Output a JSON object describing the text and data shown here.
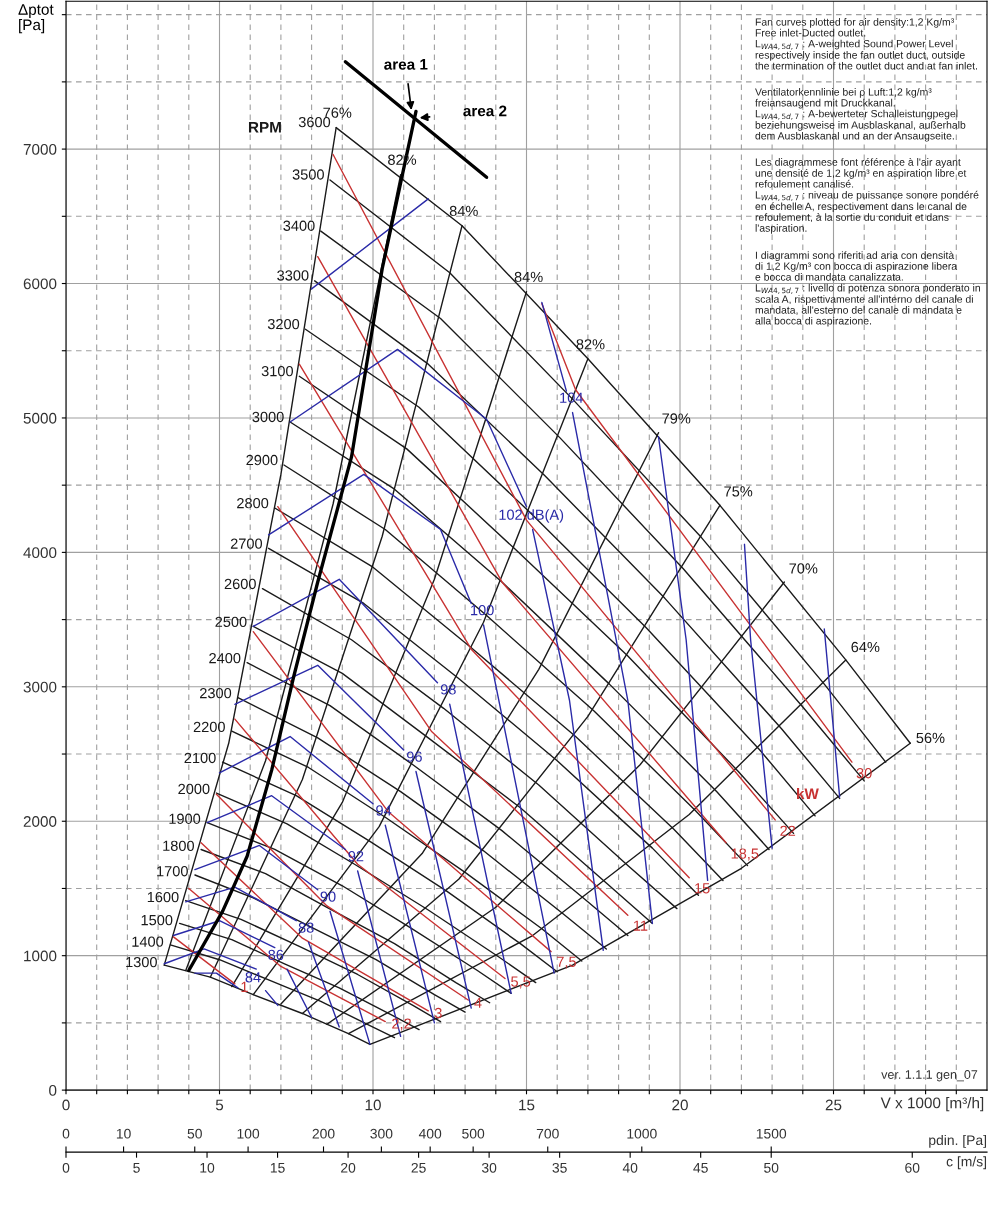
{
  "chart_data": [
    {
      "type": "line",
      "ylabel": "Δptot\n[Pa]",
      "xlabel": "V x 1000 [m³/h]",
      "xlim": [
        0,
        30
      ],
      "ylim": [
        0,
        8100
      ],
      "xticks": [
        0,
        {
          "value": 1,
          "label": null
        },
        {
          "value": 2,
          "label": null
        },
        {
          "value": 3,
          "label": null
        },
        {
          "value": 4,
          "label": null
        },
        5,
        {
          "value": 6,
          "label": null
        },
        {
          "value": 7,
          "label": null
        },
        {
          "value": 8,
          "label": null
        },
        {
          "value": 9,
          "label": null
        },
        10,
        {
          "value": 11,
          "label": null
        },
        {
          "value": 12,
          "label": null
        },
        {
          "value": 13,
          "label": null
        },
        {
          "value": 14,
          "label": null
        },
        15,
        {
          "value": 16,
          "label": null
        },
        {
          "value": 17,
          "label": null
        },
        {
          "value": 18,
          "label": null
        },
        {
          "value": 19,
          "label": null
        },
        20,
        {
          "value": 21,
          "label": null
        },
        {
          "value": 22,
          "label": null
        },
        {
          "value": 23,
          "label": null
        },
        {
          "value": 24,
          "label": null
        },
        25,
        {
          "value": 26,
          "label": null
        },
        {
          "value": 27,
          "label": null
        },
        {
          "value": 28,
          "label": null
        },
        {
          "value": 29,
          "label": null
        }
      ],
      "yticks": [
        0,
        {
          "value": 500,
          "label": null
        },
        1000,
        {
          "value": 1500,
          "label": null
        },
        2000,
        {
          "value": 2500,
          "label": null
        },
        3000,
        {
          "value": 3500,
          "label": null
        },
        4000,
        {
          "value": 4500,
          "label": null
        },
        5000,
        {
          "value": 5500,
          "label": null
        },
        6000,
        {
          "value": 6500,
          "label": null
        },
        7000,
        {
          "value": 7500,
          "label": null
        },
        {
          "value": 8000,
          "label": null
        }
      ],
      "x2label": "c [m/s]",
      "x2lim": [
        0,
        65.3
      ],
      "x2ticks": [
        0,
        5,
        10,
        15,
        20,
        25,
        30,
        35,
        40,
        45,
        50,
        60
      ],
      "grid": true,
      "series": [
        {
          "name": "1300",
          "color": "#1a1a1a",
          "x": [
            3.2,
            4.7,
            6.1,
            7.7,
            9.2,
            9.9
          ],
          "values": [
            930,
            840,
            710,
            570,
            420,
            340
          ]
        },
        {
          "name": "1400",
          "color": "#1a1a1a",
          "x": [
            3.4,
            5.0,
            6.6,
            8.3,
            9.9,
            10.7
          ],
          "values": [
            1080,
            970,
            820,
            660,
            480,
            390
          ]
        },
        {
          "name": "1500",
          "color": "#1a1a1a",
          "x": [
            3.7,
            5.4,
            7.1,
            8.9,
            10.6,
            11.5
          ],
          "values": [
            1240,
            1120,
            940,
            760,
            560,
            450
          ]
        },
        {
          "name": "1600",
          "color": "#1a1a1a",
          "x": [
            3.9,
            5.7,
            7.6,
            9.5,
            11.3,
            12.2
          ],
          "values": [
            1410,
            1270,
            1070,
            860,
            630,
            510
          ]
        },
        {
          "name": "1700",
          "color": "#1a1a1a",
          "x": [
            4.2,
            6.1,
            8.0,
            10.1,
            12.0,
            13.0
          ],
          "values": [
            1600,
            1430,
            1210,
            970,
            710,
            580
          ]
        },
        {
          "name": "1800",
          "color": "#1a1a1a",
          "x": [
            4.4,
            6.5,
            8.5,
            10.7,
            12.7,
            13.8
          ],
          "values": [
            1790,
            1610,
            1360,
            1090,
            800,
            650
          ]
        },
        {
          "name": "1900",
          "color": "#1a1a1a",
          "x": [
            4.6,
            6.8,
            9.0,
            11.2,
            13.4,
            14.5
          ],
          "values": [
            1990,
            1790,
            1520,
            1210,
            890,
            720
          ]
        },
        {
          "name": "2000",
          "color": "#1a1a1a",
          "x": [
            4.9,
            7.2,
            9.4,
            11.8,
            14.1,
            15.3
          ],
          "values": [
            2210,
            1980,
            1680,
            1340,
            990,
            800
          ]
        },
        {
          "name": "2100",
          "color": "#1a1a1a",
          "x": [
            5.1,
            7.5,
            9.9,
            12.4,
            14.8,
            16.0
          ],
          "values": [
            2440,
            2190,
            1850,
            1480,
            1090,
            880
          ]
        },
        {
          "name": "2200",
          "color": "#1a1a1a",
          "x": [
            5.4,
            7.9,
            10.4,
            13.0,
            15.5,
            16.8
          ],
          "values": [
            2670,
            2400,
            2030,
            1620,
            1200,
            960
          ]
        },
        {
          "name": "2300",
          "color": "#1a1a1a",
          "x": [
            5.6,
            8.2,
            10.9,
            13.6,
            16.2,
            17.6
          ],
          "values": [
            2920,
            2620,
            2220,
            1780,
            1310,
            1050
          ]
        },
        {
          "name": "2400",
          "color": "#1a1a1a",
          "x": [
            5.9,
            8.6,
            11.3,
            14.2,
            16.9,
            18.3
          ],
          "values": [
            3180,
            2860,
            2420,
            1930,
            1420,
            1150
          ]
        },
        {
          "name": "2500",
          "color": "#1a1a1a",
          "x": [
            6.1,
            9.0,
            11.8,
            14.8,
            17.6,
            19.1
          ],
          "values": [
            3450,
            3100,
            2620,
            2100,
            1540,
            1240
          ]
        },
        {
          "name": "2600",
          "color": "#1a1a1a",
          "x": [
            6.4,
            9.3,
            12.3,
            15.4,
            18.3,
            19.9
          ],
          "values": [
            3730,
            3350,
            2840,
            2270,
            1670,
            1350
          ]
        },
        {
          "name": "2700",
          "color": "#1a1a1a",
          "x": [
            6.6,
            9.7,
            12.8,
            16.0,
            19.1,
            20.6
          ],
          "values": [
            4030,
            3620,
            3060,
            2450,
            1800,
            1450
          ]
        },
        {
          "name": "2800",
          "color": "#1a1a1a",
          "x": [
            6.8,
            10.0,
            13.2,
            16.6,
            19.8,
            21.4
          ],
          "values": [
            4330,
            3890,
            3290,
            2630,
            1940,
            1560
          ]
        },
        {
          "name": "2900",
          "color": "#1a1a1a",
          "x": [
            7.1,
            10.4,
            13.7,
            17.2,
            20.5,
            22.2
          ],
          "values": [
            4650,
            4170,
            3530,
            2820,
            2080,
            1670
          ]
        },
        {
          "name": "3000",
          "color": "#1a1a1a",
          "x": [
            7.3,
            10.7,
            14.2,
            17.7,
            21.2,
            22.9
          ],
          "values": [
            4970,
            4470,
            3780,
            3020,
            2220,
            1790
          ]
        },
        {
          "name": "3100",
          "color": "#1a1a1a",
          "x": [
            7.6,
            11.1,
            14.6,
            18.3,
            21.9,
            23.7
          ],
          "values": [
            5310,
            4770,
            4030,
            3230,
            2370,
            1910
          ]
        },
        {
          "name": "3200",
          "color": "#1a1a1a",
          "x": [
            7.8,
            11.5,
            15.1,
            18.9,
            22.6,
            24.4
          ],
          "values": [
            5660,
            5080,
            4300,
            3440,
            2530,
            2040
          ]
        },
        {
          "name": "3300",
          "color": "#1a1a1a",
          "x": [
            8.1,
            11.8,
            15.6,
            19.5,
            23.3,
            25.2
          ],
          "values": [
            6020,
            5400,
            4570,
            3660,
            2690,
            2170
          ]
        },
        {
          "name": "3400",
          "color": "#1a1a1a",
          "x": [
            8.3,
            12.2,
            16.1,
            20.1,
            24.0,
            26.0
          ],
          "values": [
            6390,
            5740,
            4850,
            3880,
            2850,
            2300
          ]
        },
        {
          "name": "3500",
          "color": "#1a1a1a",
          "x": [
            8.6,
            12.5,
            16.5,
            20.7,
            24.7,
            26.7
          ],
          "values": [
            6770,
            6080,
            5140,
            4110,
            3020,
            2440
          ]
        },
        {
          "name": "3600",
          "color": "#1a1a1a",
          "x": [
            8.8,
            12.9,
            17.0,
            21.3,
            25.4,
            27.5
          ],
          "values": [
            7160,
            6430,
            5440,
            4350,
            3200,
            2580
          ]
        },
        {
          "name": "76%",
          "color": "#1a1a1a",
          "x": [
            8.8,
            7.0,
            5.3,
            3.2
          ],
          "values": [
            7160,
            4580,
            2580,
            930
          ]
        },
        {
          "name": "82%",
          "color": "#1a1a1a",
          "x": [
            10.9,
            8.7,
            6.5,
            3.9
          ],
          "values": [
            6810,
            4360,
            2450,
            890
          ]
        },
        {
          "name": "84%",
          "color": "#1a1a1a",
          "x": [
            12.9,
            10.3,
            7.7,
            4.7
          ],
          "values": [
            6430,
            4120,
            2310,
            840
          ]
        },
        {
          "name": "84%",
          "color": "#1a1a1a",
          "x": [
            15.0,
            12.0,
            9.0,
            5.4
          ],
          "values": [
            5940,
            3800,
            2140,
            770
          ]
        },
        {
          "name": "82%",
          "color": "#1a1a1a",
          "x": [
            17.0,
            13.6,
            10.2,
            6.1
          ],
          "values": [
            5440,
            3480,
            1960,
            710
          ]
        },
        {
          "name": "79%",
          "color": "#1a1a1a",
          "x": [
            19.3,
            15.4,
            11.6,
            7.0
          ],
          "values": [
            4890,
            3130,
            1760,
            640
          ]
        },
        {
          "name": "75%",
          "color": "#1a1a1a",
          "x": [
            21.3,
            17.0,
            12.8,
            7.7
          ],
          "values": [
            4350,
            2780,
            1570,
            570
          ]
        },
        {
          "name": "70%",
          "color": "#1a1a1a",
          "x": [
            23.4,
            18.7,
            14.0,
            8.5
          ],
          "values": [
            3780,
            2420,
            1360,
            490
          ]
        },
        {
          "name": "64%",
          "color": "#1a1a1a",
          "x": [
            25.4,
            20.3,
            15.2,
            9.2
          ],
          "values": [
            3200,
            2050,
            1150,
            420
          ]
        },
        {
          "name": "56%",
          "color": "#1a1a1a",
          "x": [
            27.5,
            22.0,
            16.5,
            9.9
          ],
          "values": [
            2580,
            1650,
            930,
            340
          ]
        },
        {
          "name": "30",
          "color": "#c83232",
          "x": [
            25.6,
            16.6,
            15.5
          ],
          "values": [
            2440,
            5210,
            5850
          ]
        },
        {
          "name": "22",
          "color": "#c83232",
          "x": [
            23.1,
            15.0,
            8.7
          ],
          "values": [
            2010,
            4240,
            6960
          ]
        },
        {
          "name": "18,5",
          "color": "#c83232",
          "x": [
            21.5,
            14.2,
            8.2
          ],
          "values": [
            1840,
            3780,
            6200
          ]
        },
        {
          "name": "15",
          "color": "#c83232",
          "x": [
            20.3,
            13.2,
            7.6
          ],
          "values": [
            1580,
            3280,
            5400
          ]
        },
        {
          "name": "11",
          "color": "#c83232",
          "x": [
            18.3,
            11.9,
            6.9
          ],
          "values": [
            1300,
            2670,
            4340
          ]
        },
        {
          "name": "7,5",
          "color": "#c83232",
          "x": [
            15.8,
            10.5,
            6.1
          ],
          "values": [
            1030,
            2070,
            3410
          ]
        },
        {
          "name": "5,5",
          "color": "#c83232",
          "x": [
            14.3,
            9.5,
            5.5
          ],
          "values": [
            830,
            1680,
            2760
          ]
        },
        {
          "name": "4",
          "color": "#c83232",
          "x": [
            13.1,
            8.5,
            4.9
          ],
          "values": [
            670,
            1370,
            2200
          ]
        },
        {
          "name": "3",
          "color": "#c83232",
          "x": [
            11.8,
            7.7,
            4.4
          ],
          "values": [
            590,
            1130,
            1840
          ]
        },
        {
          "name": "2,2",
          "color": "#c83232",
          "x": [
            10.4,
            7.0,
            4.0
          ],
          "values": [
            510,
            920,
            1500
          ]
        },
        {
          "name": "1",
          "color": "#c83232",
          "x": [
            5.5,
            3.5
          ],
          "values": [
            790,
            1140
          ]
        },
        {
          "color": "#2a2aa8",
          "x": [
            4.2,
            4.9,
            5.6
          ],
          "values": [
            870,
            870,
            760
          ]
        },
        {
          "color": "#2a2aa8",
          "x": [
            3.2,
            4.5,
            6.2
          ],
          "values": [
            940,
            1050,
            900
          ]
        },
        {
          "name": "84",
          "color": "#2a2aa8",
          "x": [
            6.5,
            6.9
          ],
          "values": [
            740,
            630
          ]
        },
        {
          "color": "#2a2aa8",
          "x": [
            3.5,
            5.0,
            6.8
          ],
          "values": [
            1150,
            1260,
            1060
          ]
        },
        {
          "name": "86",
          "color": "#2a2aa8",
          "x": [
            7.2,
            8.0
          ],
          "values": [
            900,
            540
          ]
        },
        {
          "color": "#2a2aa8",
          "x": [
            3.9,
            5.5,
            7.5
          ],
          "values": [
            1400,
            1510,
            1260
          ]
        },
        {
          "name": "88",
          "color": "#2a2aa8",
          "x": [
            7.9,
            8.9
          ],
          "values": [
            1100,
            470
          ]
        },
        {
          "color": "#2a2aa8",
          "x": [
            4.2,
            6.3,
            8.2
          ],
          "values": [
            1640,
            1820,
            1490
          ]
        },
        {
          "name": "90",
          "color": "#2a2aa8",
          "x": [
            8.6,
            9.9
          ],
          "values": [
            1330,
            340
          ]
        },
        {
          "color": "#2a2aa8",
          "x": [
            4.6,
            6.7,
            9.1
          ],
          "values": [
            1990,
            2190,
            1790
          ]
        },
        {
          "name": "92",
          "color": "#2a2aa8",
          "x": [
            9.5,
            10.9
          ],
          "values": [
            1630,
            400
          ]
        },
        {
          "color": "#2a2aa8",
          "x": [
            5.0,
            7.3,
            10.0
          ],
          "values": [
            2360,
            2630,
            2130
          ]
        },
        {
          "name": "94",
          "color": "#2a2aa8",
          "x": [
            10.4,
            12.0
          ],
          "values": [
            1970,
            500
          ]
        },
        {
          "color": "#2a2aa8",
          "x": [
            5.5,
            8.2,
            11.0
          ],
          "values": [
            2870,
            3160,
            2530
          ]
        },
        {
          "name": "96",
          "color": "#2a2aa8",
          "x": [
            11.4,
            13.2
          ],
          "values": [
            2370,
            610
          ]
        },
        {
          "color": "#2a2aa8",
          "x": [
            6.1,
            8.9,
            12.1
          ],
          "values": [
            3450,
            3800,
            3030
          ]
        },
        {
          "name": "98",
          "color": "#2a2aa8",
          "x": [
            12.5,
            14.5
          ],
          "values": [
            2870,
            720
          ]
        },
        {
          "color": "#2a2aa8",
          "x": [
            6.6,
            9.7,
            12.2,
            13.2
          ],
          "values": [
            4130,
            4580,
            4170,
            3620
          ]
        },
        {
          "name": "100",
          "color": "#2a2aa8",
          "x": [
            13.6,
            15.9
          ],
          "values": [
            3460,
            870
          ]
        },
        {
          "color": "#2a2aa8",
          "x": [
            7.3,
            10.8,
            13.7,
            15.0
          ],
          "values": [
            4970,
            5510,
            4990,
            4340
          ]
        },
        {
          "name": "102 dB(A)",
          "color": "#2a2aa8",
          "x": [
            15.2,
            16.4,
            17.5
          ],
          "values": [
            4170,
            2900,
            1040
          ]
        },
        {
          "color": "#2a2aa8",
          "x": [
            8.0,
            11.8
          ],
          "values": [
            5960,
            6630
          ]
        },
        {
          "color": "#2a2aa8",
          "x": [
            15.5,
            16.3
          ],
          "values": [
            5860,
            5200
          ]
        },
        {
          "name": "104",
          "color": "#2a2aa8",
          "x": [
            16.5,
            18.3,
            19.1
          ],
          "values": [
            5040,
            2900,
            1240
          ]
        },
        {
          "color": "#2a2aa8",
          "x": [
            19.3,
            20.2,
            20.9
          ],
          "values": [
            4860,
            3350,
            1560
          ]
        },
        {
          "color": "#2a2aa8",
          "x": [
            22.1,
            22.3,
            23.0
          ],
          "values": [
            4060,
            3350,
            1800
          ]
        },
        {
          "color": "#2a2aa8",
          "x": [
            24.7,
            25.2
          ],
          "values": [
            3430,
            2180
          ]
        },
        {
          "color": "#000000",
          "x": [
            11.4,
            10.3,
            9.3,
            8.2,
            7.4,
            6.7,
            5.9,
            5.1,
            4.0
          ],
          "values": [
            7280,
            6110,
            4710,
            3780,
            3060,
            2380,
            1740,
            1330,
            890
          ]
        },
        {
          "color": "#000000",
          "x": [
            9.1,
            13.7
          ],
          "values": [
            7650,
            6790
          ]
        }
      ],
      "annotations": [
        "Fan curves plotted for air density:1,2 Kg/m³\nFree inlet-Ducted outlet.\nL$_{WA4,5d,7}$ : A-weighted Sound Power Level\nrespectively inside the fan outlet duct, outside\nthe termination of the outlet duct and at fan inlet.",
        "Ventilatorkennlinie bei ρ Luft:1,2 kg/m³\nfreiansaugend mit Druckkanal.\nL$_{WA4,5d,7}$ : A-bewerteter Schalleistungpegel\nbeziehungsweise im Ausblaskanal, außerhalb\ndem Ausblaskanal und an der Ansaugseite.",
        "Les diagrammese font référence à l'air ayant\nune densité de 1,2 kg/m³ en aspiration libre et\nrefoulement canalisé.\nL$_{WA4,5d,7}$ : niveau de puissance sonore pondéré\nen échelle A, respectivement dans le canal de\nrefoulement, à la sortie du conduit et dans\nl'aspiration.",
        "I diagrammi sono riferiti ad aria con densità\ndi 1,2 Kg/m³ con bocca di aspirazione libera\ne bocca di mandata canalizzata.\nL$_{WA4,5d,7}$ : livello di potenza sonora ponderato in\nscala A, rispettivamente all'interno del canale di\nmandata, all'esterno del canale di mandata e\nalla bocca di aspirazione.",
        "ver. 1.1.1 gen_07",
        "RPM",
        "kW",
        {
          "text": "area 1",
          "x": 11.25,
          "y": 7290
        },
        {
          "text": "area 2",
          "x": 11.52,
          "y": 7233
        }
      ]
    },
    {
      "type": "other",
      "xlabel": "pdin. [Pa]",
      "annotations": [
        "0",
        "10",
        "50",
        "100",
        "200",
        "300",
        "400",
        "500",
        "700",
        "1000",
        "1500"
      ]
    }
  ]
}
